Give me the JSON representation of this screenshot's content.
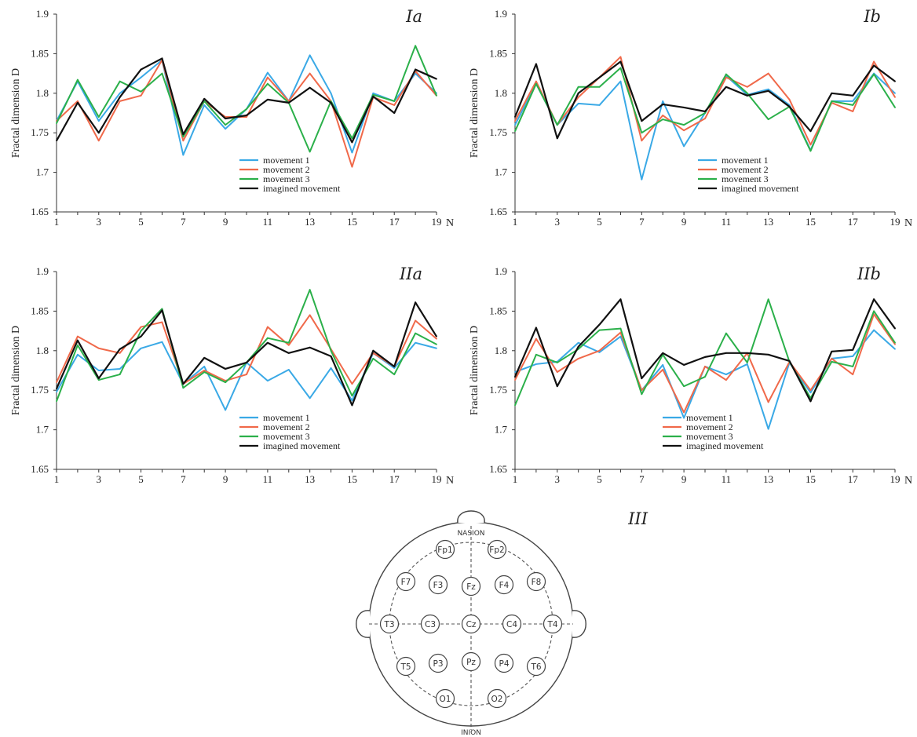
{
  "chart_data": [
    {
      "id": "Ia",
      "type": "line",
      "label": "Ia",
      "ylabel": "Fractal dimension D",
      "xlabel": "N",
      "ylim": [
        1.65,
        1.9
      ],
      "yticks": [
        "1.65",
        "1.7",
        "1.75",
        "1.8",
        "1.85",
        "1.9"
      ],
      "xlim": [
        1,
        19
      ],
      "xticks": [
        "1",
        "3",
        "5",
        "7",
        "9",
        "11",
        "13",
        "15",
        "17",
        "19"
      ],
      "x": [
        1,
        2,
        3,
        4,
        5,
        6,
        7,
        8,
        9,
        10,
        11,
        12,
        13,
        14,
        15,
        16,
        17,
        18,
        19
      ],
      "legend_position": "bottom-right",
      "series": [
        {
          "name": "movement 1",
          "color": "#3aa9e6",
          "values": [
            1.765,
            1.815,
            1.765,
            1.8,
            1.82,
            1.842,
            1.722,
            1.785,
            1.755,
            1.78,
            1.826,
            1.79,
            1.848,
            1.8,
            1.725,
            1.8,
            1.79,
            1.825,
            1.8
          ]
        },
        {
          "name": "movement 2",
          "color": "#f0694a",
          "values": [
            1.765,
            1.79,
            1.74,
            1.79,
            1.797,
            1.842,
            1.74,
            1.79,
            1.77,
            1.77,
            1.82,
            1.79,
            1.825,
            1.79,
            1.707,
            1.795,
            1.785,
            1.828,
            1.797
          ]
        },
        {
          "name": "movement 3",
          "color": "#2bb04a",
          "values": [
            1.762,
            1.817,
            1.77,
            1.815,
            1.802,
            1.825,
            1.745,
            1.79,
            1.76,
            1.78,
            1.812,
            1.788,
            1.726,
            1.79,
            1.743,
            1.798,
            1.79,
            1.86,
            1.797
          ]
        },
        {
          "name": "imagined movement",
          "color": "#111111",
          "values": [
            1.74,
            1.788,
            1.75,
            1.795,
            1.83,
            1.844,
            1.748,
            1.793,
            1.768,
            1.772,
            1.792,
            1.788,
            1.807,
            1.788,
            1.738,
            1.796,
            1.775,
            1.83,
            1.818
          ]
        }
      ]
    },
    {
      "id": "Ib",
      "type": "line",
      "label": "Ib",
      "ylabel": "Fractal dimension D",
      "xlabel": "N",
      "ylim": [
        1.65,
        1.9
      ],
      "yticks": [
        "1.65",
        "1.7",
        "1.75",
        "1.8",
        "1.85",
        "1.9"
      ],
      "xlim": [
        1,
        19
      ],
      "xticks": [
        "1",
        "3",
        "5",
        "7",
        "9",
        "11",
        "13",
        "15",
        "17",
        "19"
      ],
      "x": [
        1,
        2,
        3,
        4,
        5,
        6,
        7,
        8,
        9,
        10,
        11,
        12,
        13,
        14,
        15,
        16,
        17,
        18,
        19
      ],
      "legend_position": "bottom-right",
      "series": [
        {
          "name": "movement 1",
          "color": "#3aa9e6",
          "values": [
            1.76,
            1.812,
            1.76,
            1.787,
            1.785,
            1.815,
            1.691,
            1.79,
            1.733,
            1.775,
            1.822,
            1.798,
            1.805,
            1.785,
            1.728,
            1.79,
            1.79,
            1.825,
            1.8
          ]
        },
        {
          "name": "movement 2",
          "color": "#f0694a",
          "values": [
            1.765,
            1.815,
            1.76,
            1.795,
            1.82,
            1.846,
            1.74,
            1.772,
            1.753,
            1.768,
            1.82,
            1.808,
            1.825,
            1.792,
            1.735,
            1.788,
            1.777,
            1.84,
            1.795
          ]
        },
        {
          "name": "movement 3",
          "color": "#2bb04a",
          "values": [
            1.752,
            1.812,
            1.76,
            1.808,
            1.808,
            1.832,
            1.75,
            1.767,
            1.76,
            1.775,
            1.824,
            1.8,
            1.767,
            1.783,
            1.727,
            1.79,
            1.785,
            1.824,
            1.782
          ]
        },
        {
          "name": "imagined movement",
          "color": "#111111",
          "values": [
            1.77,
            1.837,
            1.743,
            1.8,
            1.82,
            1.84,
            1.765,
            1.786,
            1.782,
            1.777,
            1.808,
            1.797,
            1.803,
            1.783,
            1.752,
            1.8,
            1.797,
            1.835,
            1.815
          ]
        }
      ]
    },
    {
      "id": "IIa",
      "type": "line",
      "label": "IIa",
      "ylabel": "Fractal dimension D",
      "xlabel": "N",
      "ylim": [
        1.65,
        1.9
      ],
      "yticks": [
        "1.65",
        "1.7",
        "1.75",
        "1.8",
        "1.85",
        "1.9"
      ],
      "xlim": [
        1,
        19
      ],
      "xticks": [
        "1",
        "3",
        "5",
        "7",
        "9",
        "11",
        "13",
        "15",
        "17",
        "19"
      ],
      "x": [
        1,
        2,
        3,
        4,
        5,
        6,
        7,
        8,
        9,
        10,
        11,
        12,
        13,
        14,
        15,
        16,
        17,
        18,
        19
      ],
      "legend_position": "bottom-right",
      "series": [
        {
          "name": "movement 1",
          "color": "#3aa9e6",
          "values": [
            1.748,
            1.795,
            1.775,
            1.777,
            1.803,
            1.811,
            1.758,
            1.78,
            1.725,
            1.785,
            1.762,
            1.776,
            1.74,
            1.778,
            1.737,
            1.797,
            1.778,
            1.81,
            1.803
          ]
        },
        {
          "name": "movement 2",
          "color": "#f0694a",
          "values": [
            1.76,
            1.818,
            1.803,
            1.797,
            1.83,
            1.836,
            1.758,
            1.775,
            1.762,
            1.77,
            1.83,
            1.807,
            1.845,
            1.802,
            1.758,
            1.797,
            1.78,
            1.838,
            1.815
          ]
        },
        {
          "name": "movement 3",
          "color": "#2bb04a",
          "values": [
            1.736,
            1.807,
            1.763,
            1.77,
            1.825,
            1.853,
            1.753,
            1.773,
            1.76,
            1.785,
            1.816,
            1.81,
            1.877,
            1.8,
            1.743,
            1.79,
            1.77,
            1.822,
            1.808
          ]
        },
        {
          "name": "imagined movement",
          "color": "#111111",
          "values": [
            1.752,
            1.813,
            1.765,
            1.802,
            1.818,
            1.851,
            1.758,
            1.791,
            1.777,
            1.785,
            1.81,
            1.797,
            1.804,
            1.793,
            1.731,
            1.8,
            1.78,
            1.861,
            1.818
          ]
        }
      ]
    },
    {
      "id": "IIb",
      "type": "line",
      "label": "IIb",
      "ylabel": "Fractal dimension D",
      "xlabel": "N",
      "ylim": [
        1.65,
        1.9
      ],
      "yticks": [
        "1.65",
        "1.7",
        "1.75",
        "1.8",
        "1.85",
        "1.9"
      ],
      "xlim": [
        1,
        19
      ],
      "xticks": [
        "1",
        "3",
        "5",
        "7",
        "9",
        "11",
        "13",
        "15",
        "17",
        "19"
      ],
      "x": [
        1,
        2,
        3,
        4,
        5,
        6,
        7,
        8,
        9,
        10,
        11,
        12,
        13,
        14,
        15,
        16,
        17,
        18,
        19
      ],
      "legend_position": "bottom-center",
      "series": [
        {
          "name": "movement 1",
          "color": "#3aa9e6",
          "values": [
            1.773,
            1.783,
            1.786,
            1.81,
            1.798,
            1.818,
            1.75,
            1.782,
            1.715,
            1.78,
            1.77,
            1.783,
            1.701,
            1.785,
            1.747,
            1.79,
            1.793,
            1.826,
            1.802
          ]
        },
        {
          "name": "movement 2",
          "color": "#f0694a",
          "values": [
            1.763,
            1.815,
            1.773,
            1.79,
            1.8,
            1.823,
            1.75,
            1.776,
            1.722,
            1.78,
            1.763,
            1.797,
            1.735,
            1.786,
            1.75,
            1.79,
            1.77,
            1.846,
            1.808
          ]
        },
        {
          "name": "movement 3",
          "color": "#2bb04a",
          "values": [
            1.731,
            1.795,
            1.785,
            1.802,
            1.826,
            1.828,
            1.745,
            1.795,
            1.755,
            1.767,
            1.822,
            1.785,
            1.865,
            1.786,
            1.74,
            1.786,
            1.78,
            1.85,
            1.81
          ]
        },
        {
          "name": "imagined movement",
          "color": "#111111",
          "values": [
            1.767,
            1.829,
            1.755,
            1.805,
            1.833,
            1.865,
            1.765,
            1.797,
            1.782,
            1.792,
            1.797,
            1.797,
            1.795,
            1.787,
            1.736,
            1.799,
            1.801,
            1.865,
            1.828
          ]
        }
      ]
    }
  ],
  "eeg_map": {
    "label": "III",
    "nasion": "NASION",
    "inion": "INION",
    "electrodes": [
      "Fp1",
      "Fp2",
      "F7",
      "F3",
      "Fz",
      "F4",
      "F8",
      "T3",
      "C3",
      "Cz",
      "C4",
      "T4",
      "T5",
      "P3",
      "Pz",
      "P4",
      "T6",
      "O1",
      "O2"
    ]
  }
}
